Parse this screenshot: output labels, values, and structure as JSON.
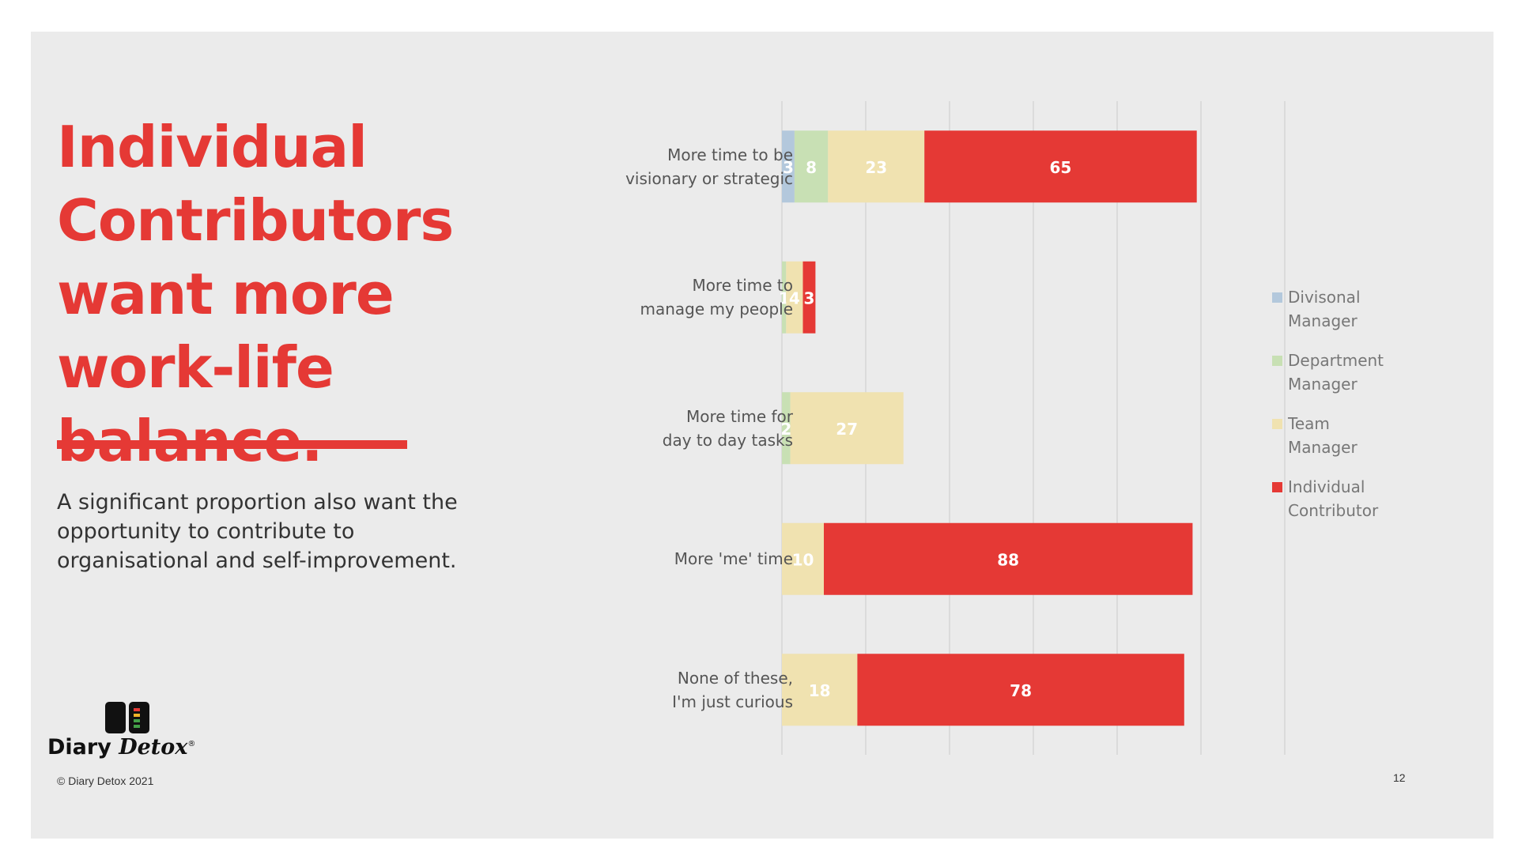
{
  "headline": "Individual Contributors want more work-life balance.",
  "subtext": "A significant proportion also want the opportunity to contribute to organisational and self-improvement.",
  "footer": {
    "copyright": "© Diary Detox 2021",
    "page_number": "12",
    "logo_word_1": "Diary",
    "logo_word_2": "Detox",
    "logo_mark": "®"
  },
  "colors": {
    "accent": "#e53935",
    "divisional_manager": "#b3c8dc",
    "department_manager": "#c8e0b4",
    "team_manager": "#f0e2b0",
    "individual_contributor": "#e53935",
    "background": "#ebebeb"
  },
  "legend": [
    {
      "label": "Divisonal\nManager"
    },
    {
      "label": "Department\nManager"
    },
    {
      "label": "Team\nManager"
    },
    {
      "label": "Individual\nContributor"
    }
  ],
  "chart_data": {
    "type": "bar",
    "orientation": "horizontal",
    "stacked": true,
    "categories": [
      "More time to be\nvisionary or strategic",
      "More time to\nmanage my people",
      "More time for\nday to day tasks",
      "More 'me' time",
      "None of these,\nI'm just curious"
    ],
    "series": [
      {
        "name": "Divisonal Manager",
        "values": [
          3,
          0,
          0,
          0,
          0
        ]
      },
      {
        "name": "Department Manager",
        "values": [
          8,
          1,
          2,
          0,
          0
        ]
      },
      {
        "name": "Team Manager",
        "values": [
          23,
          4,
          27,
          10,
          18
        ]
      },
      {
        "name": "Individual Contributor",
        "values": [
          65,
          3,
          0,
          88,
          78
        ]
      }
    ],
    "data_labels": [
      [
        "3",
        "8",
        "23",
        "65"
      ],
      [
        "",
        "1",
        "4",
        "3"
      ],
      [
        "",
        "2",
        "27",
        ""
      ],
      [
        "",
        "",
        "10",
        "88"
      ],
      [
        "",
        "",
        "18",
        "78"
      ]
    ],
    "xlim": [
      0,
      120
    ],
    "grid": true,
    "legend_position": "right"
  }
}
